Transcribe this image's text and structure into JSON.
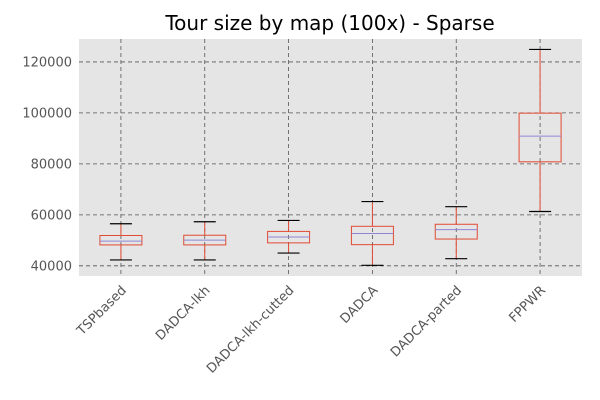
{
  "chart_data": {
    "type": "box",
    "title": "Tour size by map (100x) - Sparse",
    "xlabel": "",
    "ylabel": "",
    "ylim": [
      36000,
      129000
    ],
    "yticks": [
      40000,
      60000,
      80000,
      100000,
      120000
    ],
    "ytick_labels": [
      "40000",
      "60000",
      "80000",
      "100000",
      "120000"
    ],
    "grid": true,
    "categories": [
      "TSPbased",
      "DADCA-lkh",
      "DADCA-lkh-cutted",
      "DADCA",
      "DADCA-parted",
      "FPPWR"
    ],
    "boxes": [
      {
        "category": "TSPbased",
        "whisker_low": 42300,
        "q1": 48200,
        "median": 49700,
        "q3": 51900,
        "whisker_high": 56500
      },
      {
        "category": "DADCA-lkh",
        "whisker_low": 42300,
        "q1": 48200,
        "median": 50100,
        "q3": 52000,
        "whisker_high": 57300
      },
      {
        "category": "DADCA-lkh-cutted",
        "whisker_low": 45000,
        "q1": 49000,
        "median": 51300,
        "q3": 53500,
        "whisker_high": 57800
      },
      {
        "category": "DADCA",
        "whisker_low": 40200,
        "q1": 48300,
        "median": 52700,
        "q3": 55500,
        "whisker_high": 65200
      },
      {
        "category": "DADCA-parted",
        "whisker_low": 42800,
        "q1": 50500,
        "median": 54200,
        "q3": 56300,
        "whisker_high": 63200
      },
      {
        "category": "FPPWR",
        "whisker_low": 61300,
        "q1": 80800,
        "median": 90900,
        "q3": 99900,
        "whisker_high": 124900
      }
    ],
    "colors": {
      "background": "#e5e5e5",
      "box": "#e24a33",
      "median": "#8f86d6",
      "cap": "#000000",
      "grid": "#555555"
    }
  }
}
